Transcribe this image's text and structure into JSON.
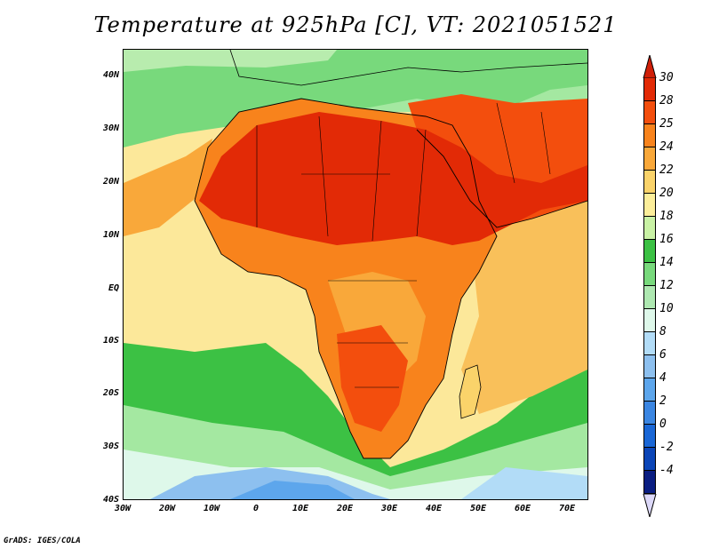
{
  "title": "Temperature at 925hPa [C], VT: 2021051521",
  "credit": "GrADS: IGES/COLA",
  "lat_labels": [
    "40N",
    "30N",
    "20N",
    "10N",
    "EQ",
    "10S",
    "20S",
    "30S",
    "40S"
  ],
  "lon_labels": [
    "30W",
    "20W",
    "10W",
    "0",
    "10E",
    "20E",
    "30E",
    "40E",
    "50E",
    "60E",
    "70E"
  ],
  "colorbar": {
    "labels": [
      "30",
      "28",
      "25",
      "24",
      "22",
      "20",
      "18",
      "16",
      "14",
      "12",
      "10",
      "8",
      "6",
      "4",
      "2",
      "0",
      "-2",
      "-4"
    ],
    "colors": [
      "#e22a06",
      "#f34e0d",
      "#f8831c",
      "#f9a83a",
      "#fad36a",
      "#fcee9a",
      "#c9f2a5",
      "#3cc144",
      "#78d97c",
      "#aee8b1",
      "#def8ea",
      "#b2dcf7",
      "#8dc0ef",
      "#5da6ec",
      "#3b86e2",
      "#1a67d6",
      "#0b45b7",
      "#0a1e82"
    ],
    "top_arrow_color": "#d01f08",
    "bottom_arrow_color": "#dcd8f8"
  },
  "map": {
    "region": "Africa and the Middle East, 40S to 45N, 30W to 75E",
    "colors": {
      "ocean_warm": "#fce89a",
      "hot": "#e22a06",
      "warm": "#f34e0d",
      "mid": "#f8831c",
      "mild": "#f9a83a",
      "cool_green": "#3cc144",
      "light_green": "#a4e8a1",
      "pale": "#def8ea",
      "blue": "#8dc0ef",
      "deep_blue": "#5da6ec"
    }
  }
}
